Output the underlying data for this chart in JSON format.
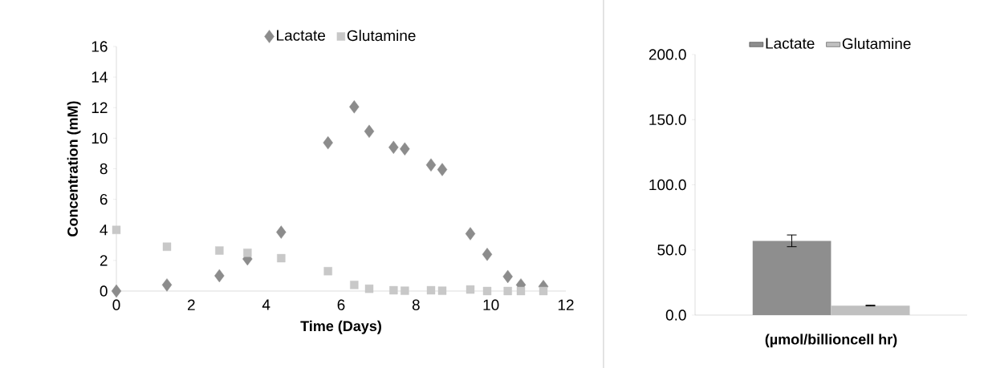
{
  "chart_data": [
    {
      "type": "scatter",
      "xlabel": "Time (Days)",
      "ylabel": "Concentration (mM)",
      "xlim": [
        0,
        12
      ],
      "xticks": [
        0,
        2,
        4,
        6,
        8,
        10,
        12
      ],
      "ylim": [
        0,
        16
      ],
      "yticks": [
        0,
        2,
        4,
        6,
        8,
        10,
        12,
        14,
        16
      ],
      "legend": "top",
      "series": [
        {
          "name": "Lactate",
          "color": "#8c8c8c",
          "marker": "diamond",
          "x": [
            0,
            1.35,
            2.75,
            3.5,
            4.4,
            5.65,
            6.35,
            6.75,
            7.4,
            7.7,
            8.4,
            8.7,
            9.45,
            9.9,
            10.45,
            10.8,
            11.4
          ],
          "values": [
            0,
            0.4,
            1.0,
            2.1,
            3.85,
            9.7,
            12.05,
            10.45,
            9.4,
            9.3,
            8.25,
            7.95,
            3.75,
            2.4,
            0.95,
            0.4,
            0.3
          ]
        },
        {
          "name": "Glutamine",
          "color": "#c8c8c8",
          "marker": "square",
          "x": [
            0,
            1.35,
            2.75,
            3.5,
            4.4,
            5.65,
            6.35,
            6.75,
            7.4,
            7.7,
            8.4,
            8.7,
            9.45,
            9.9,
            10.45,
            10.8,
            11.4
          ],
          "values": [
            4.0,
            2.9,
            2.65,
            2.5,
            2.15,
            1.3,
            0.4,
            0.15,
            0.05,
            0.02,
            0.05,
            0.02,
            0.1,
            0.0,
            0.0,
            0.0,
            0.0
          ]
        }
      ]
    },
    {
      "type": "bar",
      "xlabel": "(µmol/billioncell hr)",
      "categories": [
        null
      ],
      "ylim": [
        0,
        200
      ],
      "yticks": [
        {
          "value": 0,
          "label": "0.0"
        },
        {
          "value": 50,
          "label": "50.0"
        },
        {
          "value": 100,
          "label": "100.0"
        },
        {
          "value": 150,
          "label": "150.0"
        },
        {
          "value": 200,
          "label": "200.0"
        }
      ],
      "legend": "top",
      "series": [
        {
          "name": "Lactate",
          "color": "#8e8e8e",
          "values": [
            57
          ],
          "errors": [
            4.5
          ]
        },
        {
          "name": "Glutamine",
          "color": "#c0c0c0",
          "values": [
            7.3
          ],
          "errors": [
            0.3
          ]
        }
      ]
    }
  ]
}
